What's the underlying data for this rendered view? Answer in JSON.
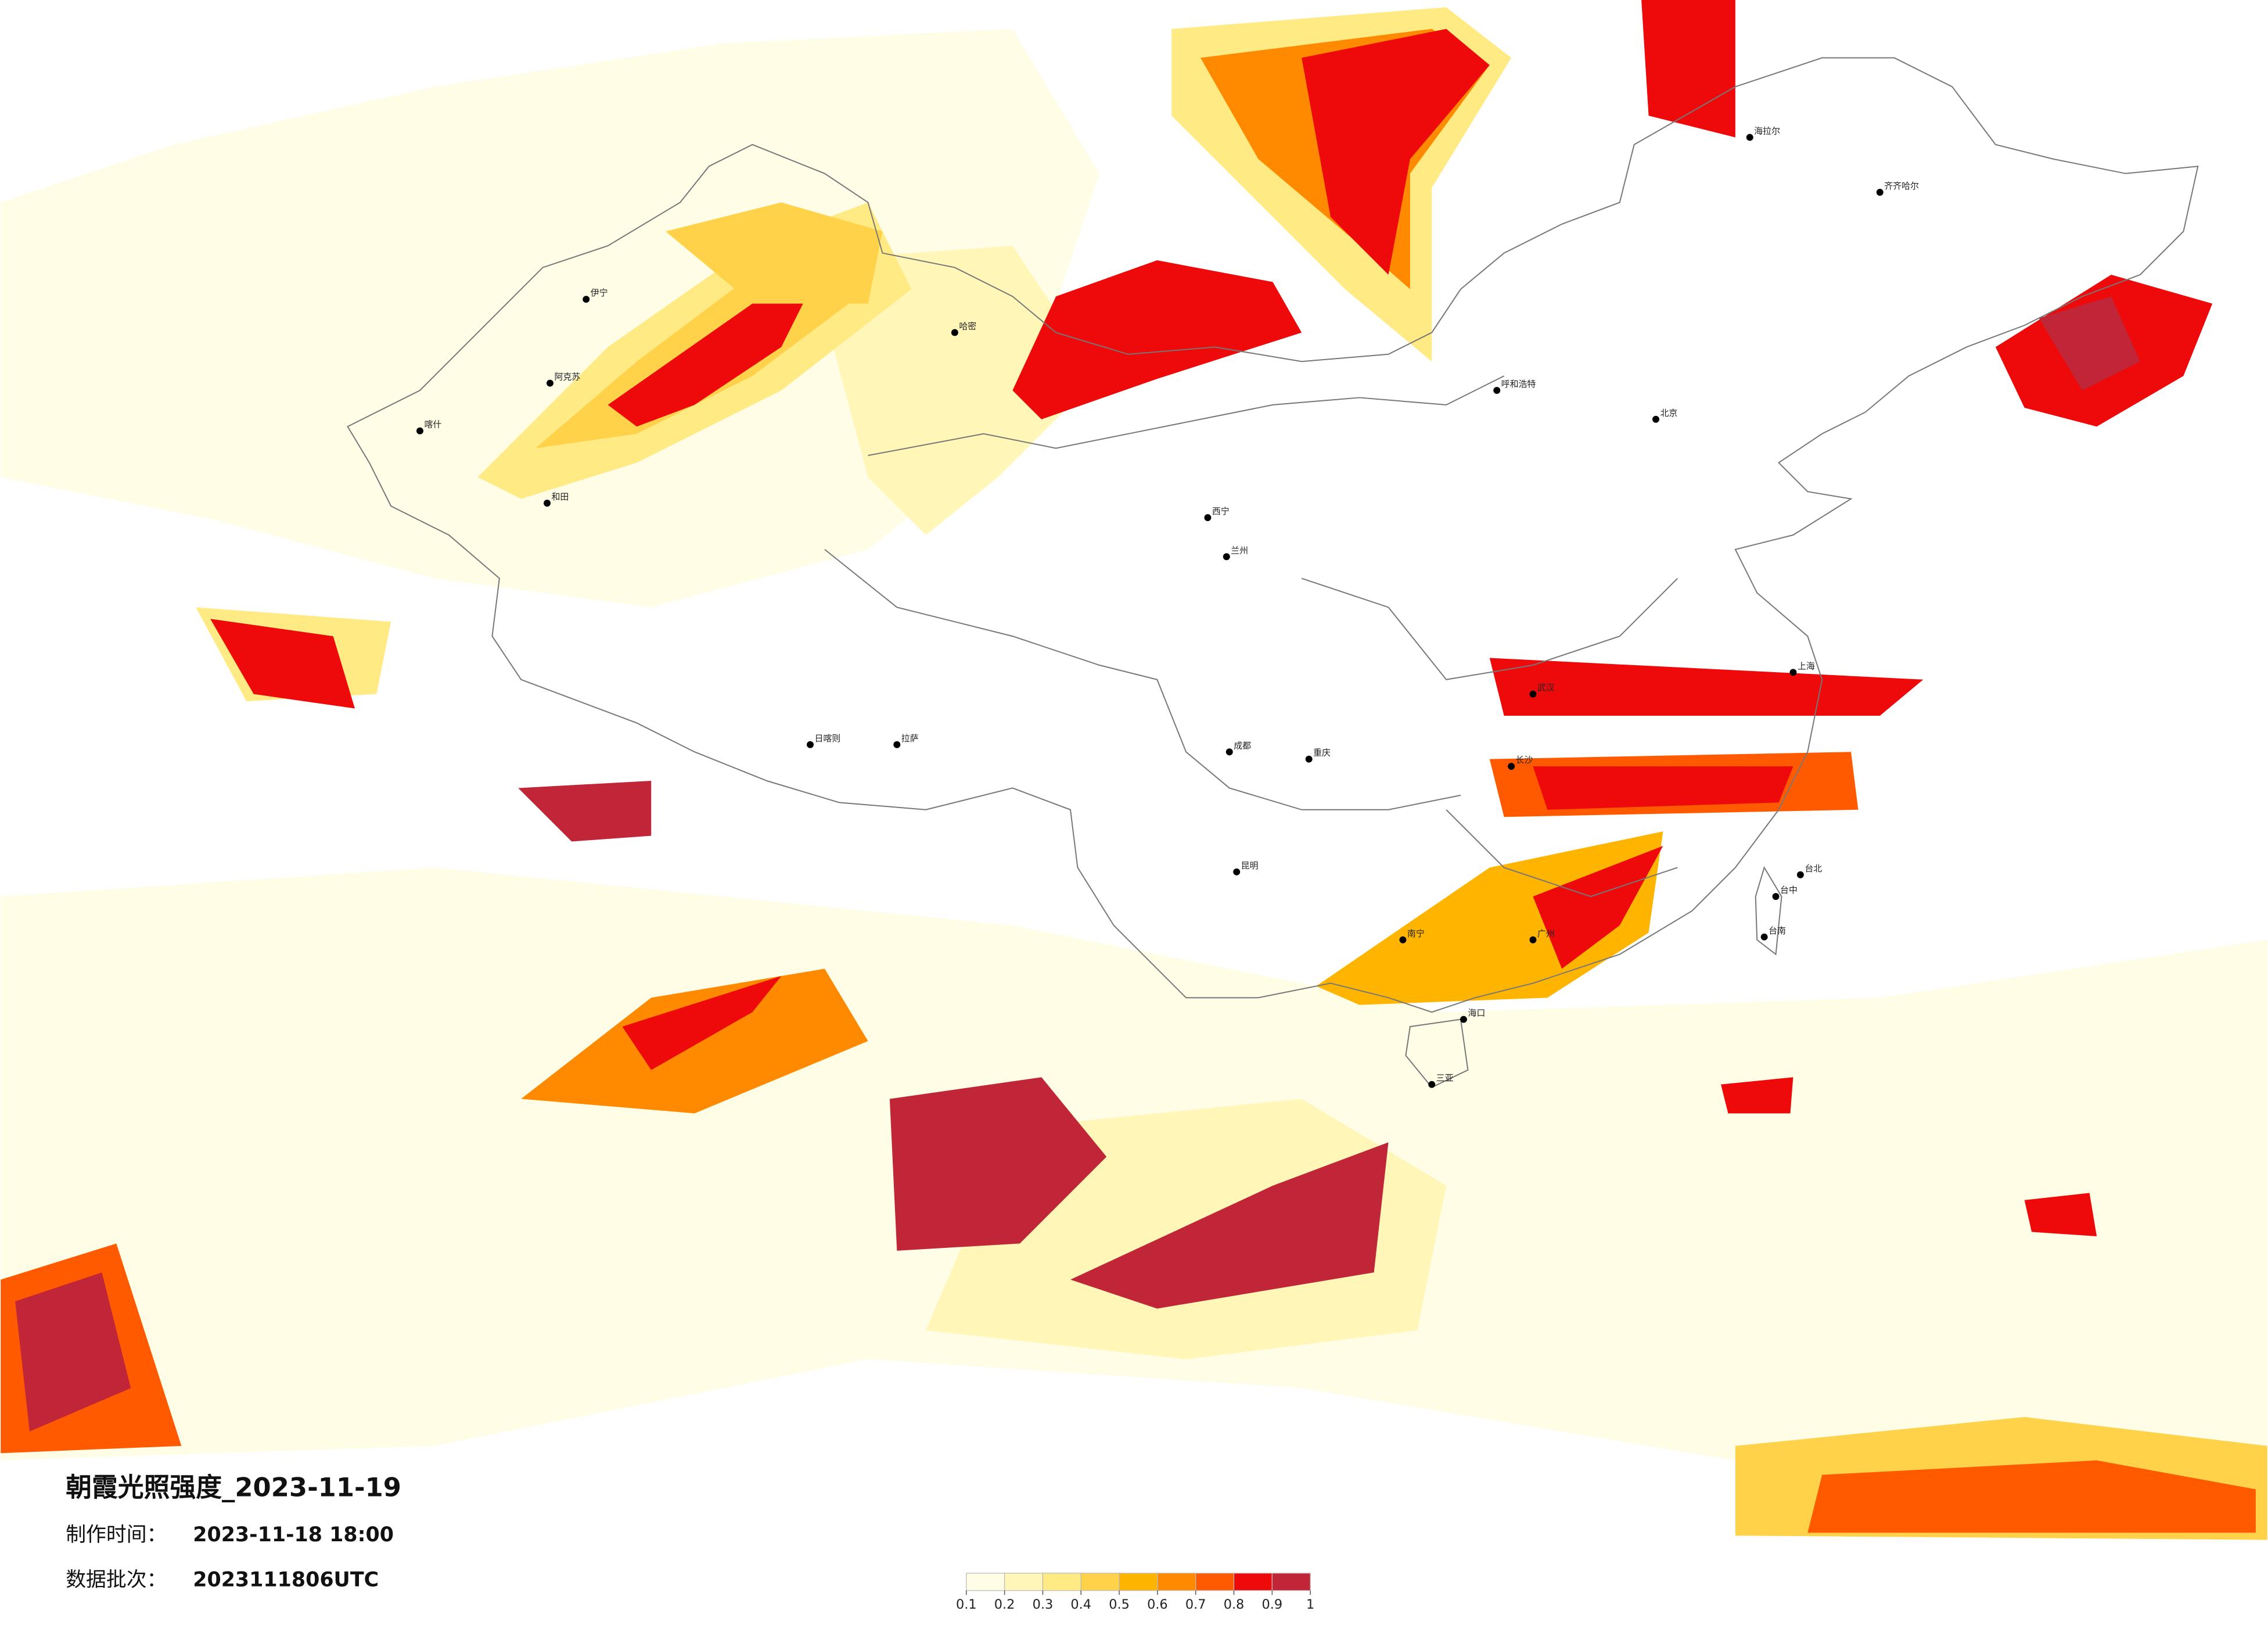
{
  "header": {
    "title": "朝霞光照强度_2023-11-19",
    "time_label": "制作时间：",
    "time_value": "2023-11-18 18:00",
    "batch_label": "数据批次：",
    "batch_value": "2023111806UTC"
  },
  "cities": [
    "伊宁",
    "阿克苏",
    "和田",
    "喀什",
    "哈密",
    "拉萨",
    "日喀则",
    "海拉尔",
    "齐齐哈尔",
    "呼和浩特",
    "西宁",
    "兰州",
    "成都",
    "重庆",
    "昆明",
    "南宁",
    "武汉",
    "长沙",
    "海口",
    "台北",
    "台中",
    "台南",
    "三亚",
    "北京",
    "上海",
    "广州"
  ],
  "legend": {
    "ticks": [
      0.1,
      0.2,
      0.3,
      0.4,
      0.5,
      0.6,
      0.7,
      0.8,
      0.9,
      1
    ],
    "colors": [
      "#fffde6",
      "#fff6b8",
      "#ffea84",
      "#ffd24a",
      "#ffb400",
      "#ff8a00",
      "#ff5a00",
      "#ee0a0a",
      "#c02638"
    ]
  }
}
